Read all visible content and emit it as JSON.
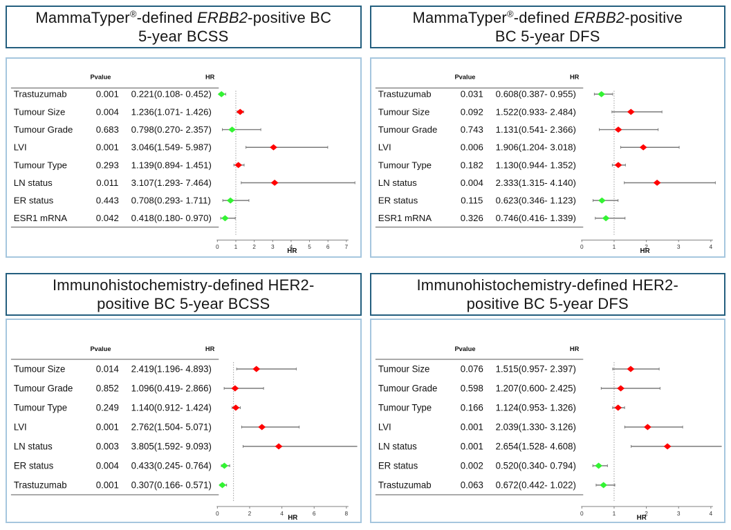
{
  "figure": {
    "kind": "forest-plot-grid",
    "columns_headers": [
      "Pvalue",
      "HR"
    ],
    "xlabel": "HR"
  },
  "colors": {
    "title_border": "#235e7e",
    "panel_border": "#a5c6de",
    "risk_red": "#ff0000",
    "protective_green": "#33f333",
    "ci_line": "#7a7a7a",
    "rule_line": "#777777",
    "ref_line": "#9a9a9a",
    "axis_line": "#808080",
    "text": "#111111"
  },
  "chart_data": [
    {
      "type": "scatter",
      "variant": "forest",
      "title": "MammaTyper®-defined ERBB2-positive BC 5-year BCSS",
      "title_lines": [
        [
          {
            "text": "MammaTyper",
            "style": "normal"
          },
          {
            "text": "®",
            "style": "sup"
          },
          {
            "text": "-defined ",
            "style": "normal"
          },
          {
            "text": "ERBB2",
            "style": "italic"
          },
          {
            "text": "-positive BC",
            "style": "normal"
          }
        ],
        [
          {
            "text": "5-year BCSS",
            "style": "normal"
          }
        ]
      ],
      "columns": [
        "Pvalue",
        "HR"
      ],
      "xlabel": "HR",
      "xlim": [
        0,
        7
      ],
      "xticks": [
        0,
        1,
        2,
        3,
        4,
        5,
        6,
        7
      ],
      "ref_line": 1,
      "rows": [
        {
          "label": "Trastuzumab",
          "pvalue": "0.001",
          "hr_text": "0.221(0.108- 0.452)",
          "hr": 0.221,
          "lo": 0.108,
          "hi": 0.452,
          "color": "green"
        },
        {
          "label": "Tumour Size",
          "pvalue": "0.004",
          "hr_text": "1.236(1.071- 1.426)",
          "hr": 1.236,
          "lo": 1.071,
          "hi": 1.426,
          "color": "red"
        },
        {
          "label": "Tumour Grade",
          "pvalue": "0.683",
          "hr_text": "0.798(0.270- 2.357)",
          "hr": 0.798,
          "lo": 0.27,
          "hi": 2.357,
          "color": "green"
        },
        {
          "label": "LVI",
          "pvalue": "0.001",
          "hr_text": "3.046(1.549- 5.987)",
          "hr": 3.046,
          "lo": 1.549,
          "hi": 5.987,
          "color": "red"
        },
        {
          "label": "Tumour Type",
          "pvalue": "0.293",
          "hr_text": "1.139(0.894- 1.451)",
          "hr": 1.139,
          "lo": 0.894,
          "hi": 1.451,
          "color": "red"
        },
        {
          "label": "LN status",
          "pvalue": "0.011",
          "hr_text": "3.107(1.293- 7.464)",
          "hr": 3.107,
          "lo": 1.293,
          "hi": 7.464,
          "color": "red"
        },
        {
          "label": "ER status",
          "pvalue": "0.443",
          "hr_text": "0.708(0.293- 1.711)",
          "hr": 0.708,
          "lo": 0.293,
          "hi": 1.711,
          "color": "green"
        },
        {
          "label": "ESR1 mRNA",
          "pvalue": "0.042",
          "hr_text": "0.418(0.180- 0.970)",
          "hr": 0.418,
          "lo": 0.18,
          "hi": 0.97,
          "color": "green"
        }
      ]
    },
    {
      "type": "scatter",
      "variant": "forest",
      "title": "MammaTyper®-defined ERBB2-positive BC 5-year DFS",
      "title_lines": [
        [
          {
            "text": "MammaTyper",
            "style": "normal"
          },
          {
            "text": "®",
            "style": "sup"
          },
          {
            "text": "-defined ",
            "style": "normal"
          },
          {
            "text": "ERBB2",
            "style": "italic"
          },
          {
            "text": "-positive",
            "style": "normal"
          }
        ],
        [
          {
            "text": "BC 5-year DFS",
            "style": "normal"
          }
        ]
      ],
      "columns": [
        "Pvalue",
        "HR"
      ],
      "xlabel": "HR",
      "xlim": [
        0,
        4
      ],
      "xticks": [
        0,
        1,
        2,
        3,
        4
      ],
      "ref_line": 1,
      "rows": [
        {
          "label": "Trastuzumab",
          "pvalue": "0.031",
          "hr_text": "0.608(0.387- 0.955)",
          "hr": 0.608,
          "lo": 0.387,
          "hi": 0.955,
          "color": "green"
        },
        {
          "label": "Tumour Size",
          "pvalue": "0.092",
          "hr_text": "1.522(0.933- 2.484)",
          "hr": 1.522,
          "lo": 0.933,
          "hi": 2.484,
          "color": "red"
        },
        {
          "label": "Tumour Grade",
          "pvalue": "0.743",
          "hr_text": "1.131(0.541- 2.366)",
          "hr": 1.131,
          "lo": 0.541,
          "hi": 2.366,
          "color": "red"
        },
        {
          "label": "LVI",
          "pvalue": "0.006",
          "hr_text": "1.906(1.204- 3.018)",
          "hr": 1.906,
          "lo": 1.204,
          "hi": 3.018,
          "color": "red"
        },
        {
          "label": "Tumour Type",
          "pvalue": "0.182",
          "hr_text": "1.130(0.944- 1.352)",
          "hr": 1.13,
          "lo": 0.944,
          "hi": 1.352,
          "color": "red"
        },
        {
          "label": "LN status",
          "pvalue": "0.004",
          "hr_text": "2.333(1.315- 4.140)",
          "hr": 2.333,
          "lo": 1.315,
          "hi": 4.14,
          "color": "red"
        },
        {
          "label": "ER status",
          "pvalue": "0.115",
          "hr_text": "0.623(0.346- 1.123)",
          "hr": 0.623,
          "lo": 0.346,
          "hi": 1.123,
          "color": "green"
        },
        {
          "label": "ESR1 mRNA",
          "pvalue": "0.326",
          "hr_text": "0.746(0.416- 1.339)",
          "hr": 0.746,
          "lo": 0.416,
          "hi": 1.339,
          "color": "green"
        }
      ]
    },
    {
      "type": "scatter",
      "variant": "forest",
      "title": "Immunohistochemistry-defined HER2-positive BC 5-year BCSS",
      "title_lines": [
        [
          {
            "text": "Immunohistochemistry-defined HER2-",
            "style": "normal"
          }
        ],
        [
          {
            "text": "positive BC 5-year BCSS",
            "style": "normal"
          }
        ]
      ],
      "columns": [
        "Pvalue",
        "HR"
      ],
      "xlabel": "HR",
      "xlim": [
        0,
        8
      ],
      "xticks": [
        0,
        2,
        4,
        6,
        8
      ],
      "ref_line": 1,
      "rows": [
        {
          "label": "Tumour Size",
          "pvalue": "0.014",
          "hr_text": "2.419(1.196- 4.893)",
          "hr": 2.419,
          "lo": 1.196,
          "hi": 4.893,
          "color": "red"
        },
        {
          "label": "Tumour Grade",
          "pvalue": "0.852",
          "hr_text": "1.096(0.419- 2.866)",
          "hr": 1.096,
          "lo": 0.419,
          "hi": 2.866,
          "color": "red"
        },
        {
          "label": "Tumour Type",
          "pvalue": "0.249",
          "hr_text": "1.140(0.912- 1.424)",
          "hr": 1.14,
          "lo": 0.912,
          "hi": 1.424,
          "color": "red"
        },
        {
          "label": "LVI",
          "pvalue": "0.001",
          "hr_text": "2.762(1.504- 5.071)",
          "hr": 2.762,
          "lo": 1.504,
          "hi": 5.071,
          "color": "red"
        },
        {
          "label": "LN status",
          "pvalue": "0.003",
          "hr_text": "3.805(1.592- 9.093)",
          "hr": 3.805,
          "lo": 1.592,
          "hi": 9.093,
          "color": "red"
        },
        {
          "label": "ER status",
          "pvalue": "0.004",
          "hr_text": "0.433(0.245- 0.764)",
          "hr": 0.433,
          "lo": 0.245,
          "hi": 0.764,
          "color": "green"
        },
        {
          "label": "Trastuzumab",
          "pvalue": "0.001",
          "hr_text": "0.307(0.166- 0.571)",
          "hr": 0.307,
          "lo": 0.166,
          "hi": 0.571,
          "color": "green"
        }
      ]
    },
    {
      "type": "scatter",
      "variant": "forest",
      "title": "Immunohistochemistry-defined HER2-positive BC 5-year DFS",
      "title_lines": [
        [
          {
            "text": "Immunohistochemistry-defined HER2-",
            "style": "normal"
          }
        ],
        [
          {
            "text": "positive BC 5-year DFS",
            "style": "normal"
          }
        ]
      ],
      "columns": [
        "Pvalue",
        "HR"
      ],
      "xlabel": "HR",
      "xlim": [
        0,
        4
      ],
      "xticks": [
        0,
        1,
        2,
        3,
        4
      ],
      "ref_line": 1,
      "rows": [
        {
          "label": "Tumour Size",
          "pvalue": "0.076",
          "hr_text": "1.515(0.957- 2.397)",
          "hr": 1.515,
          "lo": 0.957,
          "hi": 2.397,
          "color": "red"
        },
        {
          "label": "Tumour Grade",
          "pvalue": "0.598",
          "hr_text": "1.207(0.600- 2.425)",
          "hr": 1.207,
          "lo": 0.6,
          "hi": 2.425,
          "color": "red"
        },
        {
          "label": "Tumour Type",
          "pvalue": "0.166",
          "hr_text": "1.124(0.953- 1.326)",
          "hr": 1.124,
          "lo": 0.953,
          "hi": 1.326,
          "color": "red"
        },
        {
          "label": "LVI",
          "pvalue": "0.001",
          "hr_text": "2.039(1.330- 3.126)",
          "hr": 2.039,
          "lo": 1.33,
          "hi": 3.126,
          "color": "red"
        },
        {
          "label": "LN status",
          "pvalue": "0.001",
          "hr_text": "2.654(1.528- 4.608)",
          "hr": 2.654,
          "lo": 1.528,
          "hi": 4.608,
          "color": "red"
        },
        {
          "label": "ER status",
          "pvalue": "0.002",
          "hr_text": "0.520(0.340- 0.794)",
          "hr": 0.52,
          "lo": 0.34,
          "hi": 0.794,
          "color": "green"
        },
        {
          "label": "Trastuzumab",
          "pvalue": "0.063",
          "hr_text": "0.672(0.442- 1.022)",
          "hr": 0.672,
          "lo": 0.442,
          "hi": 1.022,
          "color": "green"
        }
      ]
    }
  ]
}
